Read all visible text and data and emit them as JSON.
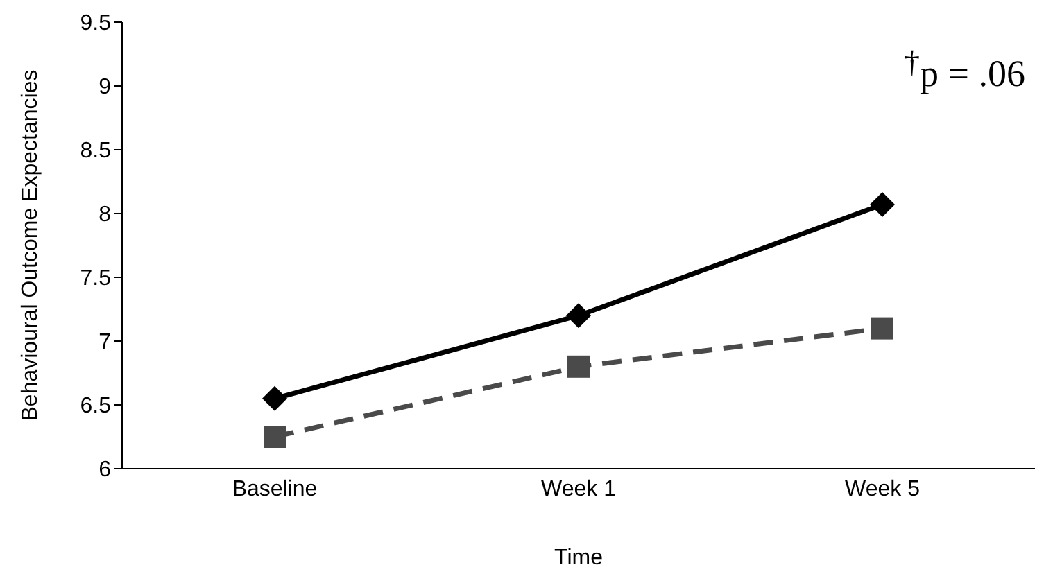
{
  "chart_data": {
    "type": "line",
    "xlabel": "Time",
    "ylabel": "Behavioural Outcome Expectancies",
    "categories": [
      "Baseline",
      "Week 1",
      "Week 5"
    ],
    "series": [
      {
        "color": "#000000",
        "values": [
          6.55,
          7.2,
          8.07
        ],
        "marker": "diamond",
        "line_style": "solid"
      },
      {
        "color": "#4a4a4a",
        "values": [
          6.25,
          6.8,
          7.1
        ],
        "marker": "square",
        "line_style": "dashed"
      }
    ],
    "ylim": [
      6,
      9.5
    ],
    "yticks": [
      6,
      6.5,
      7,
      7.5,
      8,
      8.5,
      9,
      9.5
    ],
    "grid": false,
    "annotations": [
      "$^{†}$p = .06"
    ]
  }
}
